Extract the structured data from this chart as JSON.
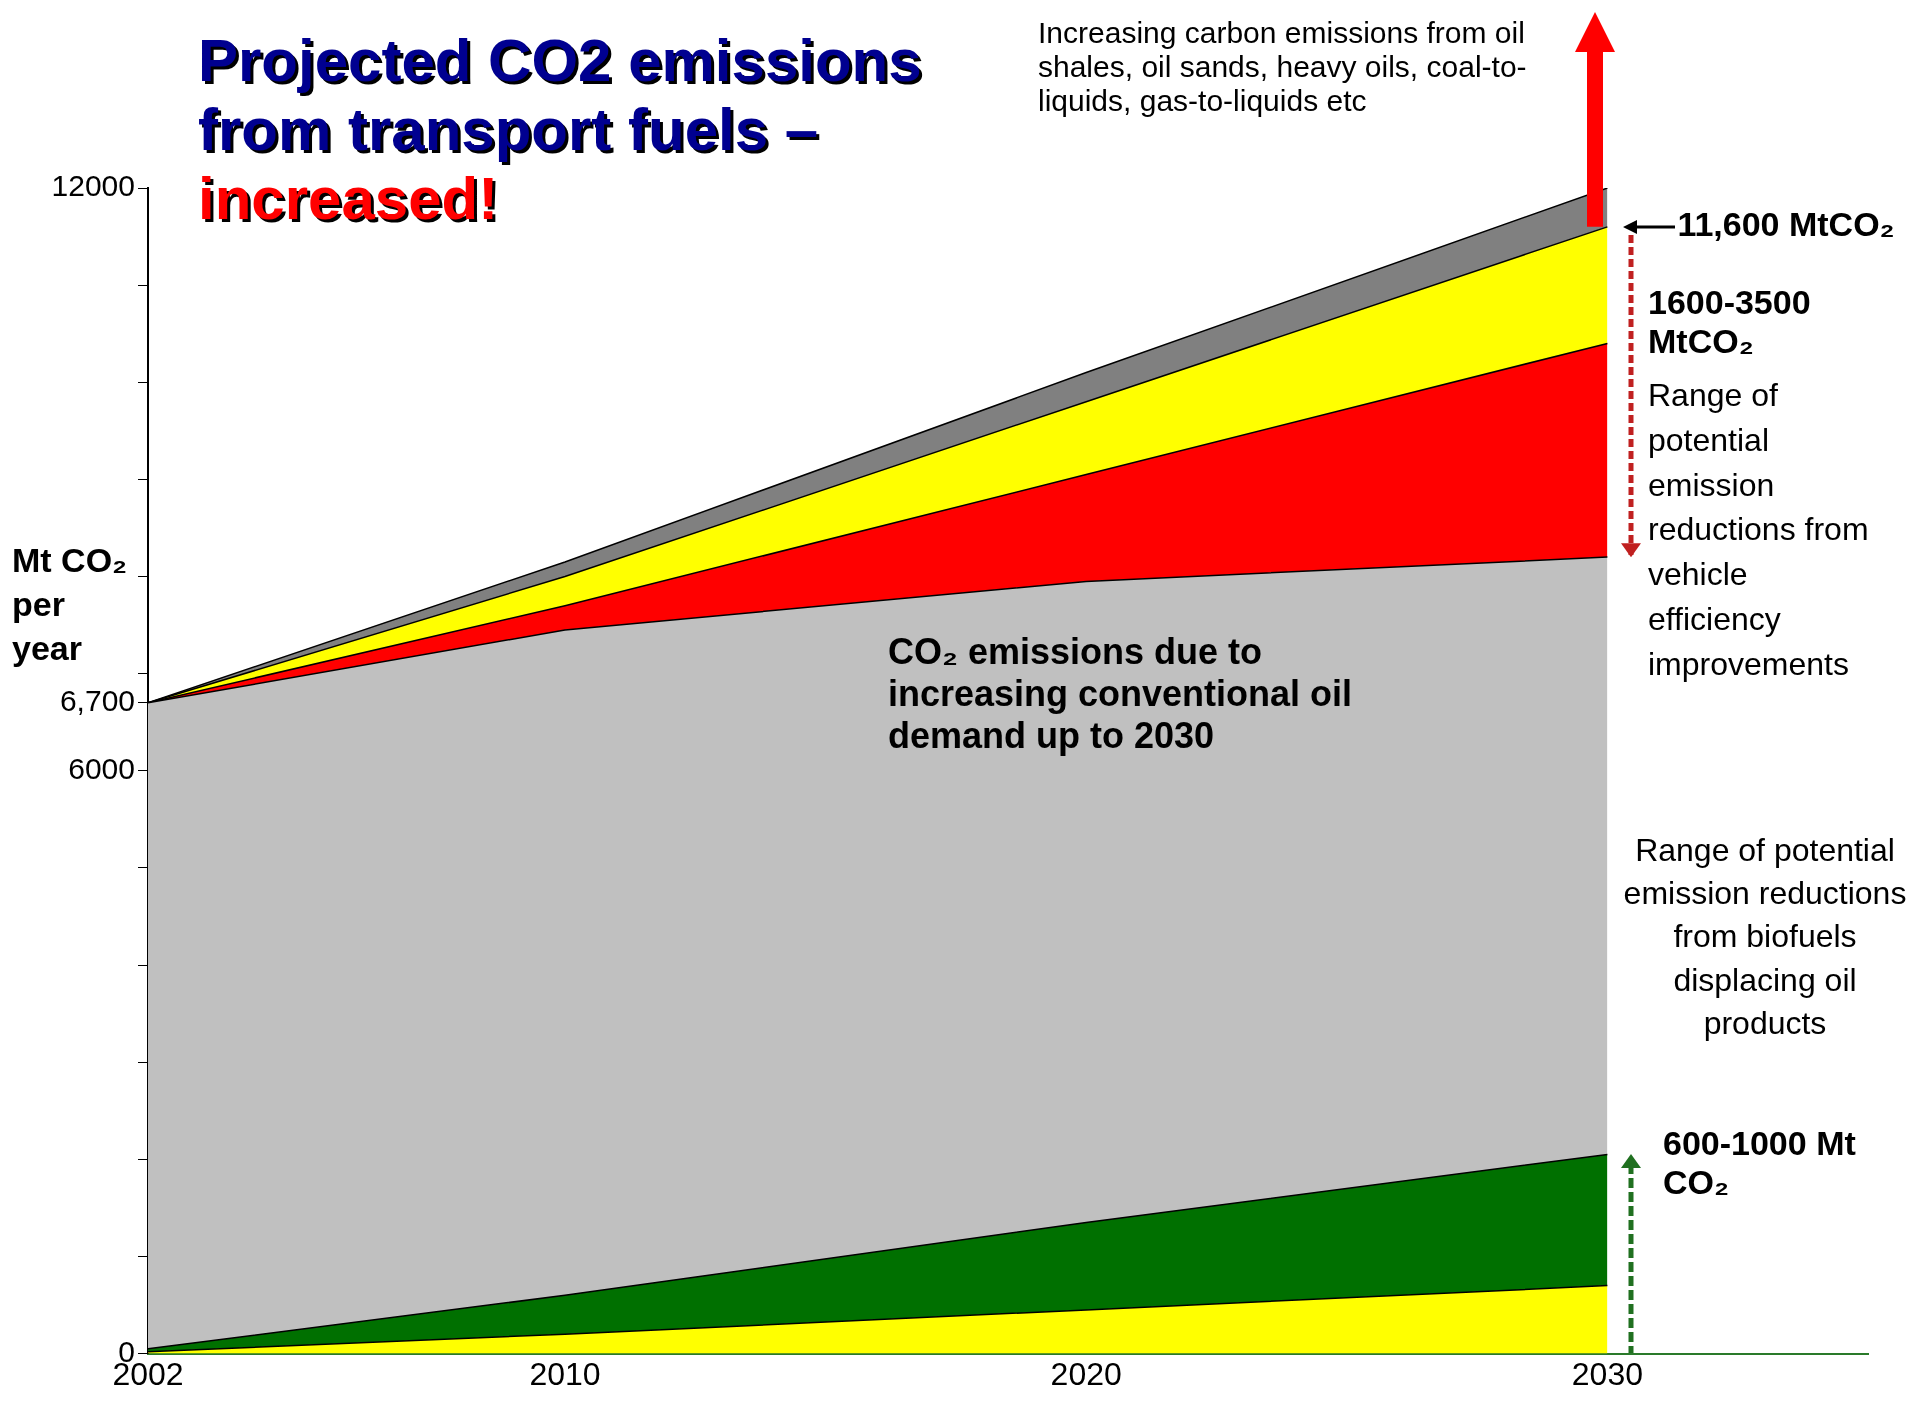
{
  "chart_data": {
    "type": "area",
    "title": "Projected CO2 emissions from transport fuels –",
    "subtitle": "increased!",
    "ylabel": "Mt CO₂ per year",
    "stacked": true,
    "grid": false,
    "legend": false,
    "x": [
      2002,
      2010,
      2020,
      2030
    ],
    "xlim": [
      2002,
      2035
    ],
    "xticks": [
      2002,
      2010,
      2020,
      2030
    ],
    "ylim": [
      0,
      12000
    ],
    "yticks": [
      0,
      {
        "value": 1000,
        "label": null
      },
      {
        "value": 2000,
        "label": null
      },
      {
        "value": 3000,
        "label": null
      },
      {
        "value": 4000,
        "label": null
      },
      {
        "value": 5000,
        "label": null
      },
      6000,
      {
        "value": 6700,
        "label": "6,700"
      },
      {
        "value": 7000,
        "label": null
      },
      {
        "value": 8000,
        "label": null
      },
      {
        "value": 9000,
        "label": null
      },
      {
        "value": 10000,
        "label": null
      },
      {
        "value": 11000,
        "label": null
      },
      12000
    ],
    "series": [
      {
        "color": "#ffff00",
        "values": [
          20,
          200,
          450,
          700
        ]
      },
      {
        "color": "#007000",
        "values": [
          30,
          400,
          900,
          1350
        ]
      },
      {
        "color": "#c0c0c0",
        "values": [
          6650,
          6850,
          6600,
          6150
        ]
      },
      {
        "color": "#ff0000",
        "values": [
          0,
          250,
          1100,
          2200
        ]
      },
      {
        "color": "#ffff00",
        "values": [
          0,
          300,
          750,
          1200
        ]
      },
      {
        "color": "#808080",
        "values": [
          0,
          150,
          300,
          400
        ]
      }
    ],
    "annotations": [
      "Increasing carbon emissions from oil shales, oil sands, heavy oils, coal-to-liquids, gas-to-liquids etc",
      {
        "text": "11,600 MtCO₂",
        "x": 2030,
        "y": 11600
      },
      "1600-3500 MtCO₂",
      "Range of potential emission reductions from vehicle efficiency improvements",
      "CO₂ emissions due to increasing conventional oil demand up to 2030",
      "Range of potential emission reductions from biofuels displacing oil products",
      "600-1000 Mt CO₂"
    ]
  }
}
